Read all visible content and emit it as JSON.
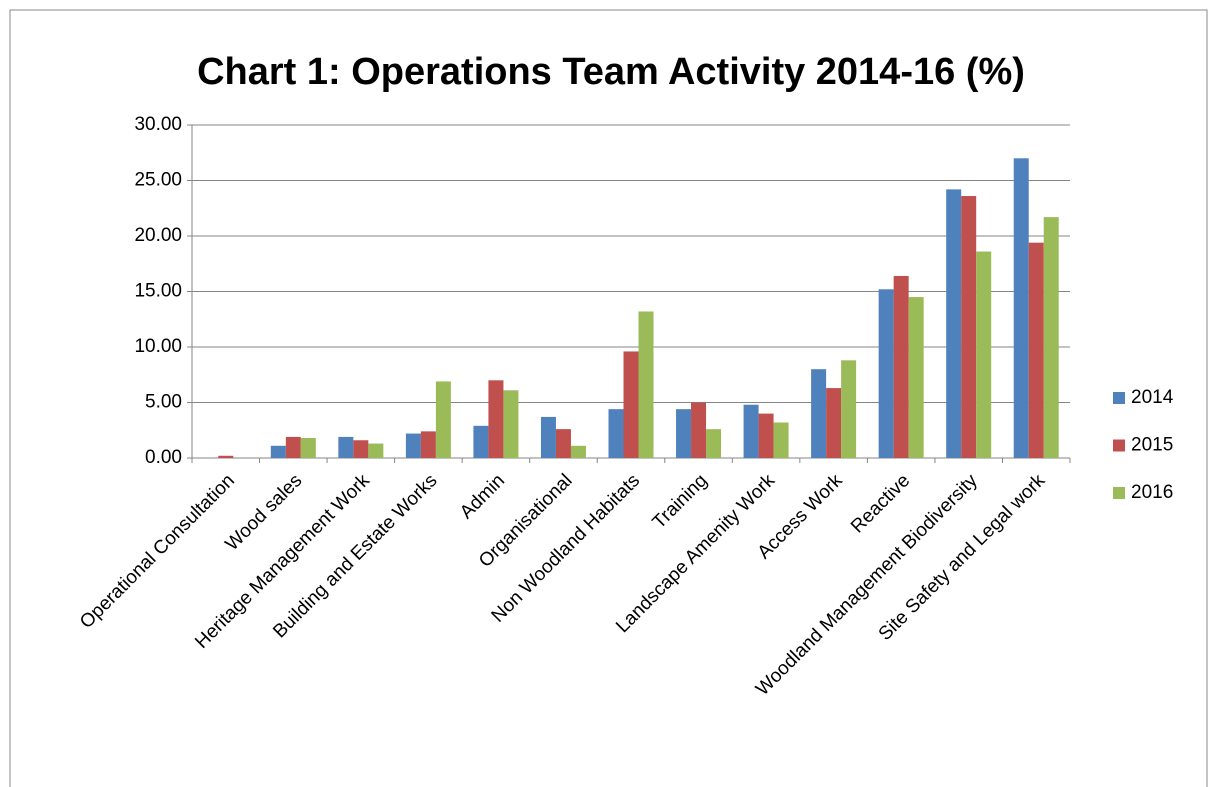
{
  "chart_data": {
    "type": "bar",
    "title": "Chart  1: Operations Team Activity 2014-16 (%)",
    "categories": [
      "Operational Consultation",
      "Wood sales",
      "Heritage Management Work",
      "Building and Estate Works",
      "Admin",
      "Organisational",
      "Non Woodland Habitats",
      "Training",
      "Landscape Amenity Work",
      "Access Work",
      "Reactive",
      "Woodland Management Biodiversity",
      "Site Safety and Legal work"
    ],
    "series": [
      {
        "name": "2014",
        "color": "#4f81bd",
        "values": [
          0,
          1.1,
          1.9,
          2.2,
          2.9,
          3.7,
          4.4,
          4.4,
          4.8,
          8.0,
          15.2,
          24.2,
          27.0
        ]
      },
      {
        "name": "2015",
        "color": "#c0504d",
        "values": [
          0.2,
          1.9,
          1.6,
          2.4,
          7.0,
          2.6,
          9.6,
          5.0,
          4.0,
          6.3,
          16.4,
          23.6,
          19.4
        ]
      },
      {
        "name": "2016",
        "color": "#9bbb59",
        "values": [
          0,
          1.8,
          1.3,
          6.9,
          6.1,
          1.1,
          13.2,
          2.6,
          3.2,
          8.8,
          14.5,
          18.6,
          21.7
        ]
      }
    ],
    "ylim": [
      0,
      30
    ],
    "yticks": [
      {
        "value": 0,
        "label": "0.00"
      },
      {
        "value": 5,
        "label": "5.00"
      },
      {
        "value": 10,
        "label": "10.00"
      },
      {
        "value": 15,
        "label": "15.00"
      },
      {
        "value": 20,
        "label": "20.00"
      },
      {
        "value": 25,
        "label": "25.00"
      },
      {
        "value": 30,
        "label": "30.00"
      }
    ],
    "grid": true,
    "legend": "right"
  }
}
